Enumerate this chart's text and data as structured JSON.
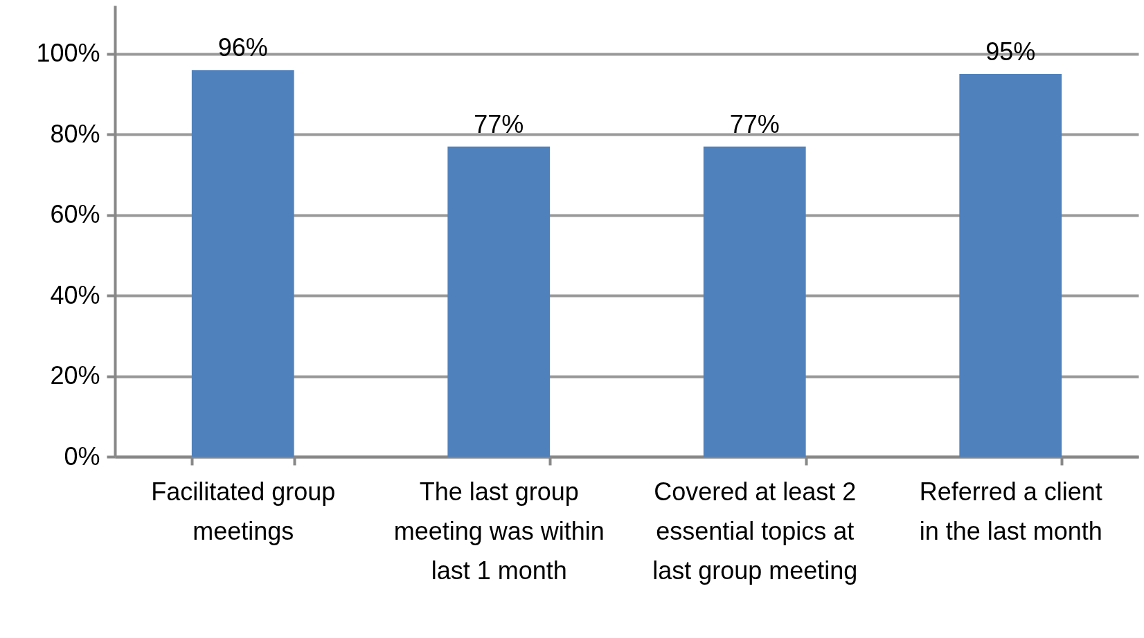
{
  "chart_data": {
    "type": "bar",
    "categories": [
      "Facilitated group meetings",
      "The last group meeting was within last 1 month",
      "Covered at least 2 essential topics at last group meeting",
      "Referred a client in the last month"
    ],
    "values": [
      96,
      77,
      77,
      95
    ],
    "color": "#4f81bd",
    "ylim": [
      0,
      112
    ],
    "yticks": [
      {
        "value": 0,
        "label": "0%"
      },
      {
        "value": 20,
        "label": "20%"
      },
      {
        "value": 40,
        "label": "40%"
      },
      {
        "value": 60,
        "label": "60%"
      },
      {
        "value": 80,
        "label": "80%"
      },
      {
        "value": 100,
        "label": "100%"
      }
    ],
    "grid": "y",
    "data_labels": true,
    "value_labels": [
      "96%",
      "77%",
      "77%",
      "95%"
    ]
  }
}
